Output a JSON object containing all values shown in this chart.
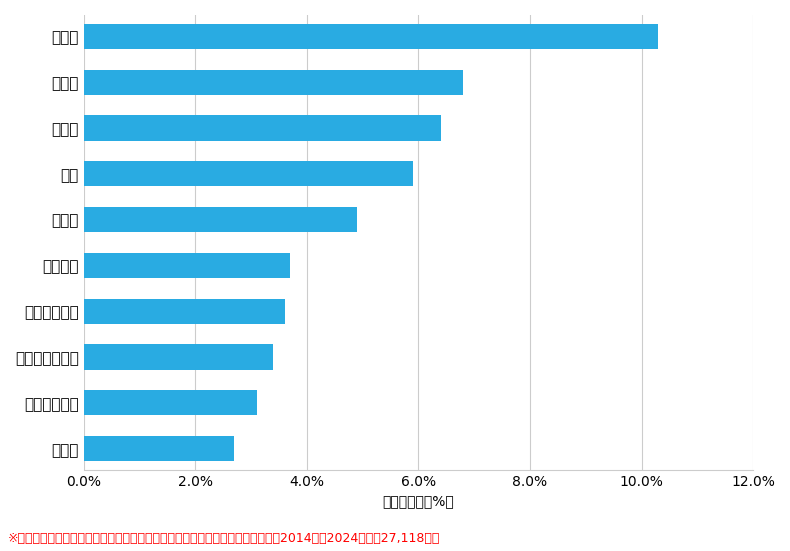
{
  "categories": [
    "船橋市",
    "市川市",
    "松戸市",
    "柏市",
    "市原市",
    "八千代市",
    "千葉市中央区",
    "千葉市花見川区",
    "千葉市若葉区",
    "八街市"
  ],
  "values": [
    10.3,
    6.8,
    6.4,
    5.9,
    4.9,
    3.7,
    3.6,
    3.4,
    3.1,
    2.7
  ],
  "bar_color": "#29ABE2",
  "xlim": [
    0,
    12.0
  ],
  "xticks": [
    0,
    2.0,
    4.0,
    6.0,
    8.0,
    10.0,
    12.0
  ],
  "xlabel": "件数の割合（%）",
  "footnote": "※弊社受付の案件を対象に、受付時に市区町村の回答があったものを集計（期間2014年～2024年、計27,118件）",
  "background_color": "#FFFFFF",
  "grid_color": "#CCCCCC",
  "bar_height": 0.55,
  "label_fontsize": 11,
  "tick_fontsize": 10,
  "footnote_fontsize": 9,
  "footnote_color": "#FF0000"
}
